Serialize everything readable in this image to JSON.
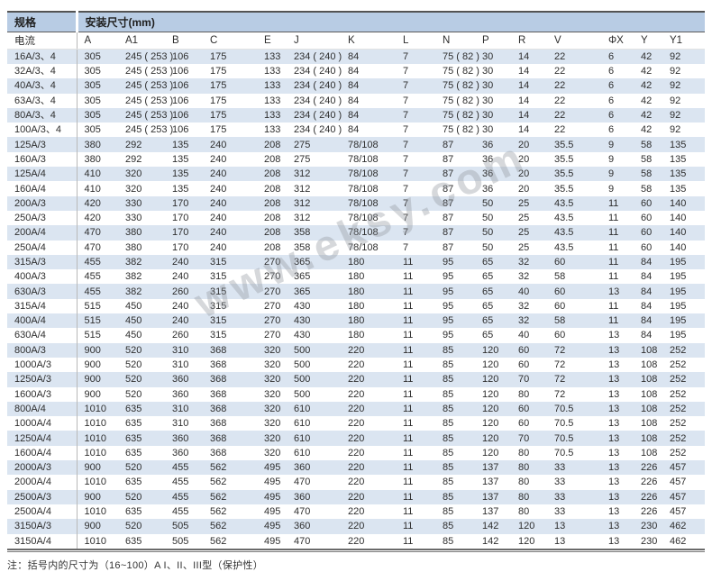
{
  "table": {
    "header_group": {
      "spec_label": "规格",
      "dims_label": "安装尺寸(mm)"
    },
    "columns": [
      "电流",
      "A",
      "A1",
      "B",
      "C",
      "E",
      "J",
      "K",
      "L",
      "N",
      "P",
      "R",
      "V",
      "ΦX",
      "Y",
      "Y1"
    ],
    "rows": [
      [
        "16A/3、4",
        "305",
        "245 ( 253 )",
        "106",
        "175",
        "133",
        "234 ( 240 )",
        "84",
        "7",
        "75 ( 82 )",
        "30",
        "14",
        "22",
        "6",
        "42",
        "92"
      ],
      [
        "32A/3、4",
        "305",
        "245 ( 253 )",
        "106",
        "175",
        "133",
        "234 ( 240 )",
        "84",
        "7",
        "75 ( 82 )",
        "30",
        "14",
        "22",
        "6",
        "42",
        "92"
      ],
      [
        "40A/3、4",
        "305",
        "245 ( 253 )",
        "106",
        "175",
        "133",
        "234 ( 240 )",
        "84",
        "7",
        "75 ( 82 )",
        "30",
        "14",
        "22",
        "6",
        "42",
        "92"
      ],
      [
        "63A/3、4",
        "305",
        "245 ( 253 )",
        "106",
        "175",
        "133",
        "234 ( 240 )",
        "84",
        "7",
        "75 ( 82 )",
        "30",
        "14",
        "22",
        "6",
        "42",
        "92"
      ],
      [
        "80A/3、4",
        "305",
        "245 ( 253 )",
        "106",
        "175",
        "133",
        "234 ( 240 )",
        "84",
        "7",
        "75 ( 82 )",
        "30",
        "14",
        "22",
        "6",
        "42",
        "92"
      ],
      [
        "100A/3、4",
        "305",
        "245 ( 253 )",
        "106",
        "175",
        "133",
        "234 ( 240 )",
        "84",
        "7",
        "75 ( 82 )",
        "30",
        "14",
        "22",
        "6",
        "42",
        "92"
      ],
      [
        "125A/3",
        "380",
        "292",
        "135",
        "240",
        "208",
        "275",
        "78/108",
        "7",
        "87",
        "36",
        "20",
        "35.5",
        "9",
        "58",
        "135"
      ],
      [
        "160A/3",
        "380",
        "292",
        "135",
        "240",
        "208",
        "275",
        "78/108",
        "7",
        "87",
        "36",
        "20",
        "35.5",
        "9",
        "58",
        "135"
      ],
      [
        "125A/4",
        "410",
        "320",
        "135",
        "240",
        "208",
        "312",
        "78/108",
        "7",
        "87",
        "36",
        "20",
        "35.5",
        "9",
        "58",
        "135"
      ],
      [
        "160A/4",
        "410",
        "320",
        "135",
        "240",
        "208",
        "312",
        "78/108",
        "7",
        "87",
        "36",
        "20",
        "35.5",
        "9",
        "58",
        "135"
      ],
      [
        "200A/3",
        "420",
        "330",
        "170",
        "240",
        "208",
        "312",
        "78/108",
        "7",
        "87",
        "50",
        "25",
        "43.5",
        "11",
        "60",
        "140"
      ],
      [
        "250A/3",
        "420",
        "330",
        "170",
        "240",
        "208",
        "312",
        "78/108",
        "7",
        "87",
        "50",
        "25",
        "43.5",
        "11",
        "60",
        "140"
      ],
      [
        "200A/4",
        "470",
        "380",
        "170",
        "240",
        "208",
        "358",
        "78/108",
        "7",
        "87",
        "50",
        "25",
        "43.5",
        "11",
        "60",
        "140"
      ],
      [
        "250A/4",
        "470",
        "380",
        "170",
        "240",
        "208",
        "358",
        "78/108",
        "7",
        "87",
        "50",
        "25",
        "43.5",
        "11",
        "60",
        "140"
      ],
      [
        "315A/3",
        "455",
        "382",
        "240",
        "315",
        "270",
        "365",
        "180",
        "11",
        "95",
        "65",
        "32",
        "60",
        "11",
        "84",
        "195"
      ],
      [
        "400A/3",
        "455",
        "382",
        "240",
        "315",
        "270",
        "365",
        "180",
        "11",
        "95",
        "65",
        "32",
        "58",
        "11",
        "84",
        "195"
      ],
      [
        "630A/3",
        "455",
        "382",
        "260",
        "315",
        "270",
        "365",
        "180",
        "11",
        "95",
        "65",
        "40",
        "60",
        "13",
        "84",
        "195"
      ],
      [
        "315A/4",
        "515",
        "450",
        "240",
        "315",
        "270",
        "430",
        "180",
        "11",
        "95",
        "65",
        "32",
        "60",
        "11",
        "84",
        "195"
      ],
      [
        "400A/4",
        "515",
        "450",
        "240",
        "315",
        "270",
        "430",
        "180",
        "11",
        "95",
        "65",
        "32",
        "58",
        "11",
        "84",
        "195"
      ],
      [
        "630A/4",
        "515",
        "450",
        "260",
        "315",
        "270",
        "430",
        "180",
        "11",
        "95",
        "65",
        "40",
        "60",
        "13",
        "84",
        "195"
      ],
      [
        "800A/3",
        "900",
        "520",
        "310",
        "368",
        "320",
        "500",
        "220",
        "11",
        "85",
        "120",
        "60",
        "72",
        "13",
        "108",
        "252"
      ],
      [
        "1000A/3",
        "900",
        "520",
        "310",
        "368",
        "320",
        "500",
        "220",
        "11",
        "85",
        "120",
        "60",
        "72",
        "13",
        "108",
        "252"
      ],
      [
        "1250A/3",
        "900",
        "520",
        "360",
        "368",
        "320",
        "500",
        "220",
        "11",
        "85",
        "120",
        "70",
        "72",
        "13",
        "108",
        "252"
      ],
      [
        "1600A/3",
        "900",
        "520",
        "360",
        "368",
        "320",
        "500",
        "220",
        "11",
        "85",
        "120",
        "80",
        "72",
        "13",
        "108",
        "252"
      ],
      [
        "800A/4",
        "1010",
        "635",
        "310",
        "368",
        "320",
        "610",
        "220",
        "11",
        "85",
        "120",
        "60",
        "70.5",
        "13",
        "108",
        "252"
      ],
      [
        "1000A/4",
        "1010",
        "635",
        "310",
        "368",
        "320",
        "610",
        "220",
        "11",
        "85",
        "120",
        "60",
        "70.5",
        "13",
        "108",
        "252"
      ],
      [
        "1250A/4",
        "1010",
        "635",
        "360",
        "368",
        "320",
        "610",
        "220",
        "11",
        "85",
        "120",
        "70",
        "70.5",
        "13",
        "108",
        "252"
      ],
      [
        "1600A/4",
        "1010",
        "635",
        "360",
        "368",
        "320",
        "610",
        "220",
        "11",
        "85",
        "120",
        "80",
        "70.5",
        "13",
        "108",
        "252"
      ],
      [
        "2000A/3",
        "900",
        "520",
        "455",
        "562",
        "495",
        "360",
        "220",
        "11",
        "85",
        "137",
        "80",
        "33",
        "13",
        "226",
        "457"
      ],
      [
        "2000A/4",
        "1010",
        "635",
        "455",
        "562",
        "495",
        "470",
        "220",
        "11",
        "85",
        "137",
        "80",
        "33",
        "13",
        "226",
        "457"
      ],
      [
        "2500A/3",
        "900",
        "520",
        "455",
        "562",
        "495",
        "360",
        "220",
        "11",
        "85",
        "137",
        "80",
        "33",
        "13",
        "226",
        "457"
      ],
      [
        "2500A/4",
        "1010",
        "635",
        "455",
        "562",
        "495",
        "470",
        "220",
        "11",
        "85",
        "137",
        "80",
        "33",
        "13",
        "226",
        "457"
      ],
      [
        "3150A/3",
        "900",
        "520",
        "505",
        "562",
        "495",
        "360",
        "220",
        "11",
        "85",
        "142",
        "120",
        "13",
        "13",
        "230",
        "462"
      ],
      [
        "3150A/4",
        "1010",
        "635",
        "505",
        "562",
        "495",
        "470",
        "220",
        "11",
        "85",
        "142",
        "120",
        "13",
        "13",
        "230",
        "462"
      ]
    ]
  },
  "note": {
    "text": "注：括号内的尺寸为（16~100）A I、II、III型（保护性）"
  },
  "watermark": {
    "text": "www.eksy.com"
  },
  "colors": {
    "header_bg": "#b8cce4",
    "stripe_bg": "#dbe5f1",
    "border_dark": "#5c5c5c",
    "text": "#2e2e2e"
  }
}
